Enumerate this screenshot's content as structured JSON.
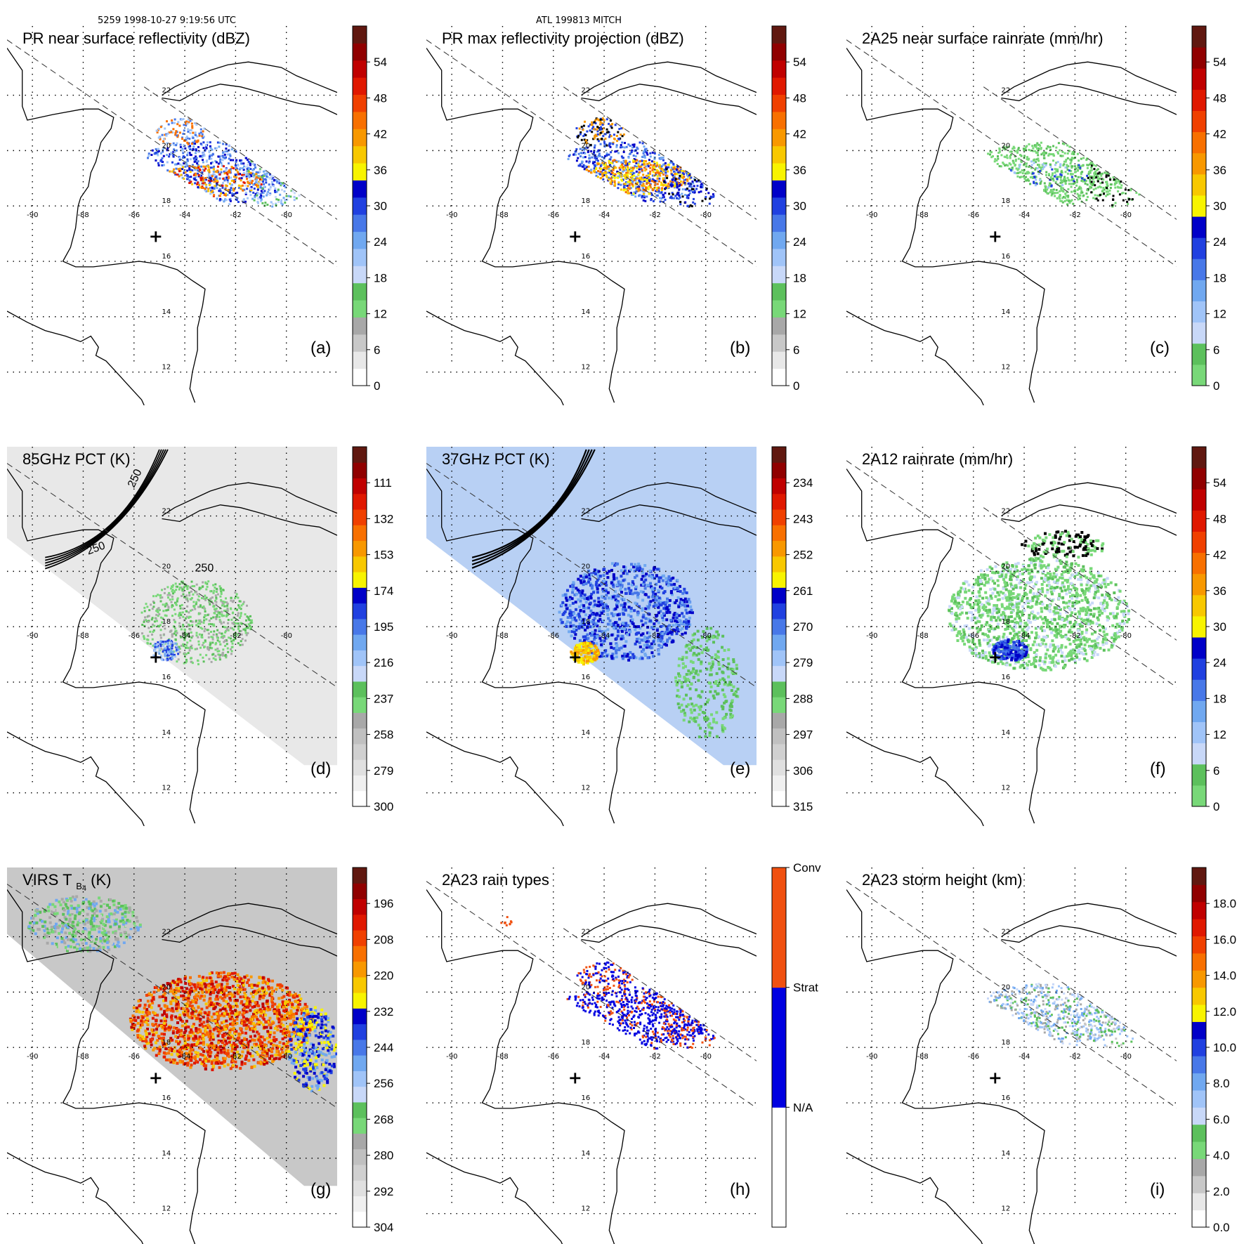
{
  "header": {
    "left": "5259 1998-10-27 9:19:56 UTC",
    "center": "ATL 199813 MITCH"
  },
  "map": {
    "lon_ticks": [
      "-90",
      "-88",
      "-86",
      "-84",
      "-82",
      "-80"
    ],
    "lat_ticks": [
      "22",
      "20",
      "18",
      "16",
      "14",
      "12"
    ],
    "center_marker": "+"
  },
  "chart_data": [
    {
      "type": "heatmap",
      "id": "a",
      "title": "PR near surface reflectivity (dBZ)",
      "label": "(a)",
      "colorbar": {
        "ticks": [
          "0",
          "6",
          "12",
          "18",
          "24",
          "30",
          "36",
          "42",
          "48",
          "54"
        ]
      }
    },
    {
      "type": "heatmap",
      "id": "b",
      "title": "PR max reflectivity projection (dBZ)",
      "label": "(b)",
      "colorbar": {
        "ticks": [
          "0",
          "6",
          "12",
          "18",
          "24",
          "30",
          "36",
          "42",
          "48",
          "54"
        ]
      }
    },
    {
      "type": "heatmap",
      "id": "c",
      "title": "2A25 near surface rainrate (mm/hr)",
      "label": "(c)",
      "colorbar": {
        "ticks": [
          "0",
          "6",
          "12",
          "18",
          "24",
          "30",
          "36",
          "42",
          "48",
          "54"
        ]
      }
    },
    {
      "type": "heatmap",
      "id": "d",
      "title": "85GHz PCT (K)",
      "label": "(d)",
      "contour_labels": [
        "250",
        "250",
        "250"
      ],
      "colorbar": {
        "ticks": [
          "300",
          "279",
          "258",
          "237",
          "216",
          "195",
          "174",
          "153",
          "132",
          "111"
        ]
      }
    },
    {
      "type": "heatmap",
      "id": "e",
      "title": "37GHz PCT (K)",
      "label": "(e)",
      "colorbar": {
        "ticks": [
          "315",
          "306",
          "297",
          "288",
          "279",
          "270",
          "261",
          "252",
          "243",
          "234"
        ]
      }
    },
    {
      "type": "heatmap",
      "id": "f",
      "title": "2A12 rainrate (mm/hr)",
      "label": "(f)",
      "colorbar": {
        "ticks": [
          "0",
          "6",
          "12",
          "18",
          "24",
          "30",
          "36",
          "42",
          "48",
          "54"
        ]
      }
    },
    {
      "type": "heatmap",
      "id": "g",
      "title": "VIRS T",
      "title_sub": "B",
      "title_sub2": "4",
      "title_tail": "(K)",
      "label": "(g)",
      "colorbar": {
        "ticks": [
          "304",
          "292",
          "280",
          "268",
          "256",
          "244",
          "232",
          "220",
          "208",
          "196"
        ]
      }
    },
    {
      "type": "heatmap",
      "id": "h",
      "title": "2A23 rain types",
      "label": "(h)",
      "colorbar": {
        "ticks": [
          "N/A",
          "Strat",
          "Conv"
        ]
      }
    },
    {
      "type": "heatmap",
      "id": "i",
      "title": "2A23 storm height (km)",
      "label": "(i)",
      "colorbar": {
        "ticks": [
          "0.0",
          "2.0",
          "4.0",
          "6.0",
          "8.0",
          "10.0",
          "12.0",
          "14.0",
          "16.0",
          "18.0"
        ]
      }
    }
  ],
  "colors": {
    "dbz_scale": [
      "#ffffff",
      "#e8e8e8",
      "#c8c8c8",
      "#a8a8a8",
      "#78d878",
      "#5cc05c",
      "#c8d8f8",
      "#a0c4f8",
      "#70a8f0",
      "#4878e8",
      "#2040e0",
      "#0000c8",
      "#f8f400",
      "#f8c800",
      "#f89800",
      "#f87000",
      "#f04000",
      "#e01800",
      "#c00000",
      "#900000",
      "#601810"
    ],
    "rain_scale": [
      "#78d878",
      "#5cc05c",
      "#c8d8f8",
      "#a0c4f8",
      "#70a8f0",
      "#4878e8",
      "#2040e0",
      "#0000c8",
      "#f8f400",
      "#f8c800",
      "#f89800",
      "#f87000",
      "#f04000",
      "#e01800",
      "#c00000",
      "#900000",
      "#601810"
    ],
    "pct_scale": [
      "#ffffff",
      "#f0f0f0",
      "#e0e0e0",
      "#d0d0d0",
      "#c0c0c0",
      "#a8a8a8",
      "#78d878",
      "#5cc05c",
      "#c8d8f8",
      "#a0c4f8",
      "#70a8f0",
      "#4878e8",
      "#2040e0",
      "#0000c8",
      "#f8f400",
      "#f8c800",
      "#f89800",
      "#f87000",
      "#f04000",
      "#e01800",
      "#c00000",
      "#900000",
      "#601810"
    ],
    "raintype": [
      "#ffffff",
      "#0000e0",
      "#f05010"
    ]
  }
}
